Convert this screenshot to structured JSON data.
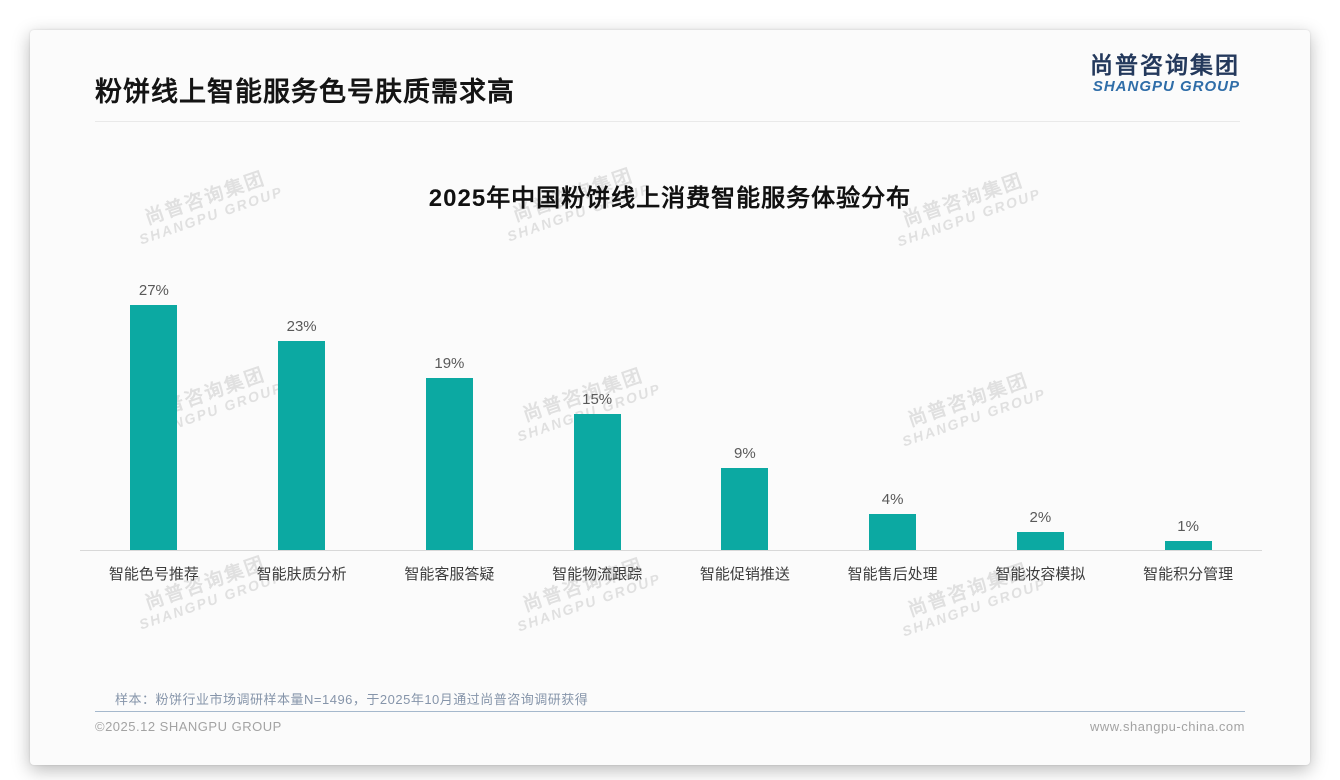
{
  "page": {
    "title": "粉饼线上智能服务色号肤质需求高"
  },
  "logo": {
    "cn": "尚普咨询集团",
    "en": "SHANGPU GROUP"
  },
  "watermark": {
    "line1": "尚普咨询集团",
    "line2": "SHANGPU GROUP"
  },
  "chart_data": {
    "type": "bar",
    "title": "2025年中国粉饼线上消费智能服务体验分布",
    "categories": [
      "智能色号推荐",
      "智能肤质分析",
      "智能客服答疑",
      "智能物流跟踪",
      "智能促销推送",
      "智能售后处理",
      "智能妆容模拟",
      "智能积分管理"
    ],
    "values": [
      27,
      23,
      19,
      15,
      9,
      4,
      2,
      1
    ],
    "data_labels": [
      "27%",
      "23%",
      "19%",
      "15%",
      "9%",
      "4%",
      "2%",
      "1%"
    ],
    "unit": "%",
    "bar_color": "#0ca9a2",
    "xlabel": "",
    "ylabel": "",
    "ylim": [
      0,
      30
    ],
    "grid": false,
    "legend": "none",
    "value_label_color": "#595959",
    "axis_line_color": "#d8d8d8"
  },
  "footnote": "样本：粉饼行业市场调研样本量N=1496，于2025年10月通过尚普咨询调研获得",
  "footer": {
    "left": "©2025.12 SHANGPU GROUP",
    "right": "www.shangpu-china.com"
  }
}
